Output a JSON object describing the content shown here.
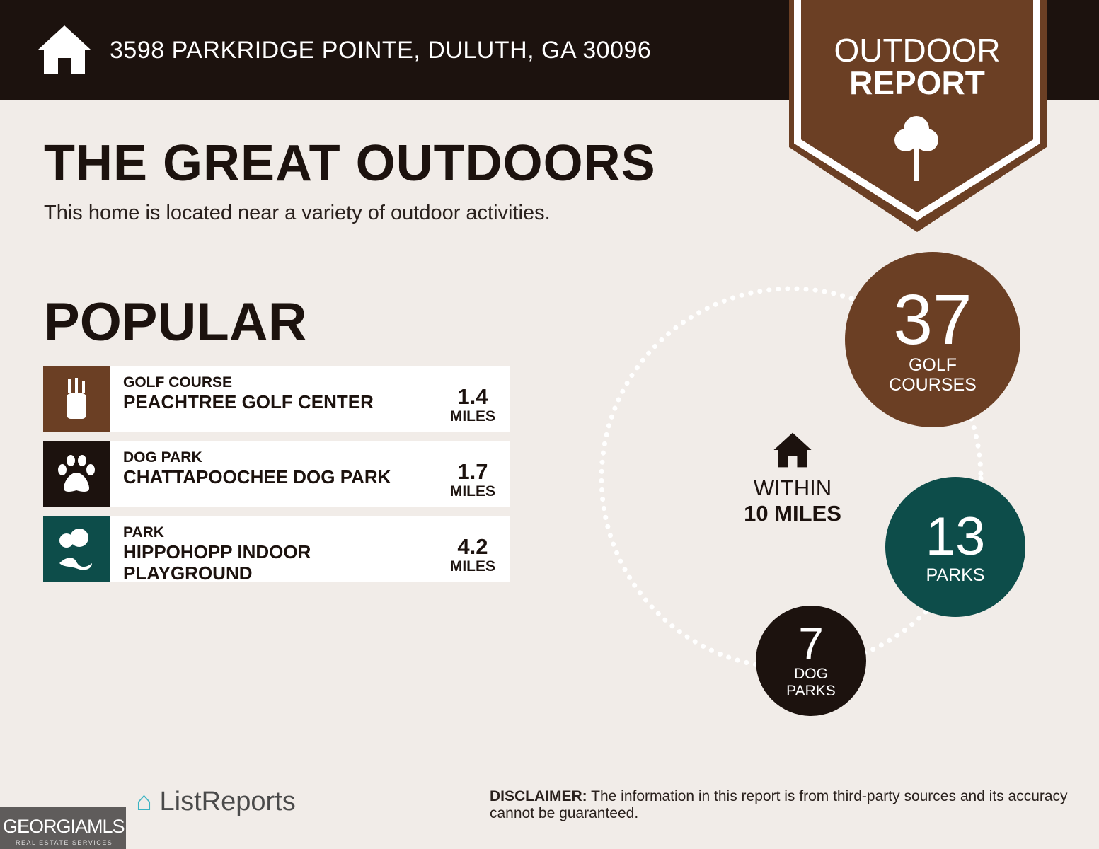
{
  "header": {
    "address": "3598 PARKRIDGE POINTE, DULUTH, GA 30096",
    "badge_line1": "OUTDOOR",
    "badge_line2": "REPORT"
  },
  "main": {
    "title": "THE GREAT OUTDOORS",
    "subtitle": "This home is located near a variety of outdoor activities.",
    "popular_heading": "POPULAR"
  },
  "popular": [
    {
      "category": "GOLF COURSE",
      "name": "PEACHTREE GOLF CENTER",
      "distance": "1.4",
      "unit": "MILES",
      "icon": "golf-bag-icon",
      "color": "#6b3f24"
    },
    {
      "category": "DOG PARK",
      "name": "CHATTAPOOCHEE DOG PARK",
      "distance": "1.7",
      "unit": "MILES",
      "icon": "paw-icon",
      "color": "#1c120e"
    },
    {
      "category": "PARK",
      "name": "HIPPOHOPP INDOOR PLAYGROUND",
      "distance": "4.2",
      "unit": "MILES",
      "icon": "trees-icon",
      "color": "#0d4d4a"
    }
  ],
  "summary": {
    "within_line1": "WITHIN",
    "within_line2": "10 MILES",
    "golf": {
      "count": "37",
      "label1": "GOLF",
      "label2": "COURSES",
      "color": "#6b3f24"
    },
    "parks": {
      "count": "13",
      "label1": "PARKS",
      "color": "#0d4d4a"
    },
    "dog_parks": {
      "count": "7",
      "label1": "DOG",
      "label2": "PARKS",
      "color": "#1c120e"
    }
  },
  "footer": {
    "disclaimer_label": "DISCLAIMER:",
    "disclaimer_text": " The information in this report is from third-party sources and its accuracy cannot be guaranteed.",
    "brand": "ListReports",
    "mls_logo": "GEORGIAMLS",
    "mls_sub": "REAL ESTATE SERVICES"
  }
}
